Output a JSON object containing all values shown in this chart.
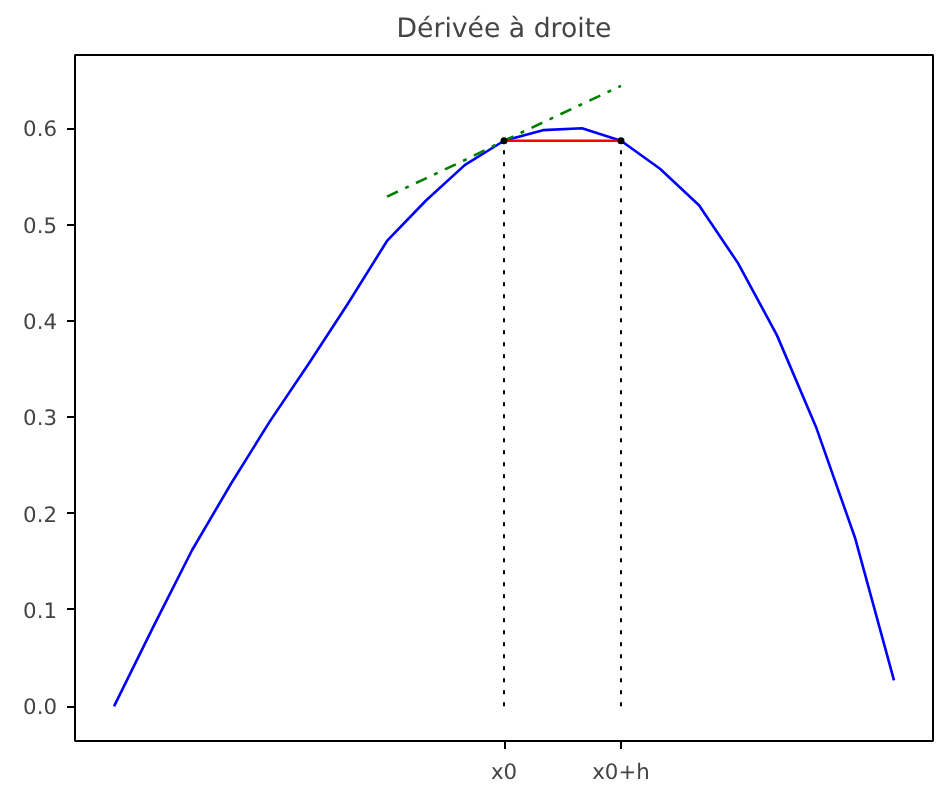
{
  "chart_data": {
    "type": "line",
    "title": "Dérivée à droite",
    "categories": [
      null,
      null,
      null,
      null,
      null,
      null,
      null,
      null,
      null,
      null,
      "x0",
      null,
      null,
      "x0+h",
      null,
      null,
      null,
      null,
      null,
      null,
      null
    ],
    "ylim": [
      -0.036,
      0.676
    ],
    "yticks": [
      {
        "value": 0.0,
        "label": "0.0"
      },
      0.1,
      0.2,
      0.3,
      0.4,
      0.5,
      0.6
    ],
    "series": [
      {
        "color": "#0000ff",
        "line_style": "solid",
        "values": [
          0.0,
          0.082,
          0.162,
          0.231,
          0.296,
          0.356,
          0.418,
          0.483,
          0.525,
          0.562,
          0.587,
          0.598,
          0.6,
          0.587,
          0.558,
          0.52,
          0.46,
          0.385,
          0.29,
          0.175,
          0.027
        ]
      },
      {
        "color": "#008000",
        "line_style": "dashdot",
        "values": [
          null,
          null,
          null,
          null,
          null,
          null,
          null,
          0.529,
          0.548,
          0.567,
          0.587,
          0.606,
          0.625,
          0.644,
          null,
          null,
          null,
          null,
          null,
          null,
          null
        ]
      },
      {
        "color": "#ff0000",
        "line_style": "solid",
        "values": [
          null,
          null,
          null,
          null,
          null,
          null,
          null,
          null,
          null,
          null,
          0.587,
          0.587,
          0.587,
          0.587,
          null,
          null,
          null,
          null,
          null,
          null,
          null
        ]
      },
      {
        "type": "lollipop",
        "marker": "circle",
        "color": "#000000",
        "line_style": "dotted",
        "values": [
          null,
          null,
          null,
          null,
          null,
          null,
          null,
          null,
          null,
          null,
          0.587,
          null,
          null,
          0.587,
          null,
          null,
          null,
          null,
          null,
          null,
          null
        ]
      }
    ]
  }
}
